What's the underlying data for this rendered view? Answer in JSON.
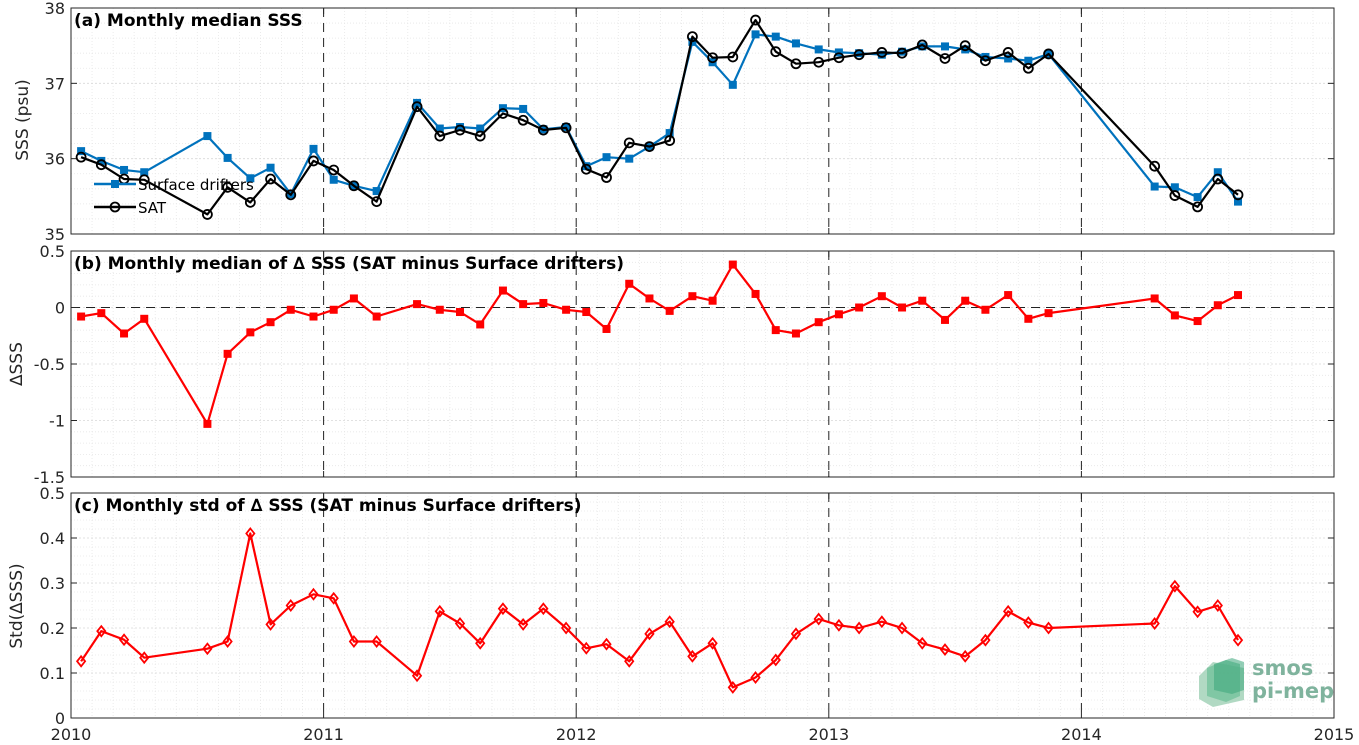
{
  "chart_data": [
    {
      "type": "line",
      "title": "(a) Monthly median SSS",
      "ylabel": "SSS (psu)",
      "xlim": [
        2010,
        2015
      ],
      "ylim": [
        35,
        38
      ],
      "yticks": [
        35,
        36,
        37,
        38
      ],
      "xticks": [
        2010,
        2011,
        2012,
        2013,
        2014,
        2015
      ],
      "grid": true,
      "legend": "lower-left",
      "series": [
        {
          "name": "Surface drifters",
          "color": "#0072bd",
          "marker": "square",
          "x": [
            2010.04,
            2010.12,
            2010.21,
            2010.29,
            2010.54,
            2010.62,
            2010.71,
            2010.79,
            2010.87,
            2010.96,
            2011.04,
            2011.12,
            2011.21,
            2011.37,
            2011.46,
            2011.54,
            2011.62,
            2011.71,
            2011.79,
            2011.87,
            2011.96,
            2012.04,
            2012.12,
            2012.21,
            2012.29,
            2012.37,
            2012.46,
            2012.54,
            2012.62,
            2012.71,
            2012.79,
            2012.87,
            2012.96,
            2013.04,
            2013.12,
            2013.21,
            2013.29,
            2013.37,
            2013.46,
            2013.54,
            2013.62,
            2013.71,
            2013.79,
            2013.87,
            2014.29,
            2014.37,
            2014.46,
            2014.54,
            2014.62
          ],
          "y": [
            36.1,
            35.97,
            35.85,
            35.82,
            36.3,
            36.01,
            35.74,
            35.88,
            35.53,
            36.13,
            35.72,
            35.64,
            35.57,
            36.74,
            36.4,
            36.42,
            36.4,
            36.67,
            36.66,
            36.39,
            36.42,
            35.9,
            36.02,
            36.0,
            36.16,
            36.34,
            37.55,
            37.28,
            36.98,
            37.65,
            37.62,
            37.53,
            37.45,
            37.41,
            37.4,
            37.38,
            37.42,
            37.49,
            37.49,
            37.45,
            37.35,
            37.33,
            37.3,
            37.39,
            35.63,
            35.62,
            35.49,
            35.82,
            35.43
          ]
        },
        {
          "name": "SAT",
          "color": "#000000",
          "marker": "circle",
          "x": [
            2010.04,
            2010.12,
            2010.21,
            2010.29,
            2010.54,
            2010.62,
            2010.71,
            2010.79,
            2010.87,
            2010.96,
            2011.04,
            2011.12,
            2011.21,
            2011.37,
            2011.46,
            2011.54,
            2011.62,
            2011.71,
            2011.79,
            2011.87,
            2011.96,
            2012.04,
            2012.12,
            2012.21,
            2012.29,
            2012.37,
            2012.46,
            2012.54,
            2012.62,
            2012.71,
            2012.79,
            2012.87,
            2012.96,
            2013.04,
            2013.12,
            2013.21,
            2013.29,
            2013.37,
            2013.46,
            2013.54,
            2013.62,
            2013.71,
            2013.79,
            2013.87,
            2014.29,
            2014.37,
            2014.46,
            2014.54,
            2014.62
          ],
          "y": [
            36.02,
            35.92,
            35.73,
            35.72,
            35.26,
            35.62,
            35.42,
            35.73,
            35.52,
            35.97,
            35.85,
            35.64,
            35.43,
            36.69,
            36.3,
            36.38,
            36.3,
            36.6,
            36.51,
            36.38,
            36.41,
            35.86,
            35.75,
            36.21,
            36.16,
            36.24,
            37.62,
            37.34,
            37.35,
            37.84,
            37.42,
            37.26,
            37.28,
            37.34,
            37.38,
            37.41,
            37.4,
            37.51,
            37.33,
            37.5,
            37.3,
            37.41,
            37.2,
            37.39,
            35.9,
            35.51,
            35.36,
            35.73,
            35.52
          ]
        }
      ]
    },
    {
      "type": "line",
      "title": "(b) Monthly median of ∆ SSS (SAT minus Surface drifters)",
      "ylabel": "∆SSS",
      "xlim": [
        2010,
        2015
      ],
      "ylim": [
        -1.5,
        0.5
      ],
      "yticks": [
        -1.5,
        -1,
        -0.5,
        0,
        0.5
      ],
      "xticks": [
        2010,
        2011,
        2012,
        2013,
        2014,
        2015
      ],
      "grid": true,
      "reference_line": 0,
      "series": [
        {
          "name": "",
          "color": "#ff0000",
          "marker": "square",
          "x": [
            2010.04,
            2010.12,
            2010.21,
            2010.29,
            2010.54,
            2010.62,
            2010.71,
            2010.79,
            2010.87,
            2010.96,
            2011.04,
            2011.12,
            2011.21,
            2011.37,
            2011.46,
            2011.54,
            2011.62,
            2011.71,
            2011.79,
            2011.87,
            2011.96,
            2012.04,
            2012.12,
            2012.21,
            2012.29,
            2012.37,
            2012.46,
            2012.54,
            2012.62,
            2012.71,
            2012.79,
            2012.87,
            2012.96,
            2013.04,
            2013.12,
            2013.21,
            2013.29,
            2013.37,
            2013.46,
            2013.54,
            2013.62,
            2013.71,
            2013.79,
            2013.87,
            2014.29,
            2014.37,
            2014.46,
            2014.54,
            2014.62
          ],
          "y": [
            -0.08,
            -0.05,
            -0.23,
            -0.1,
            -1.03,
            -0.41,
            -0.22,
            -0.13,
            -0.02,
            -0.08,
            -0.02,
            0.08,
            -0.08,
            0.03,
            -0.02,
            -0.04,
            -0.15,
            0.15,
            0.03,
            0.04,
            -0.02,
            -0.04,
            -0.19,
            0.21,
            0.08,
            -0.03,
            0.1,
            0.06,
            0.38,
            0.12,
            -0.2,
            -0.23,
            -0.13,
            -0.06,
            0.0,
            0.1,
            0.0,
            0.06,
            -0.11,
            0.06,
            -0.02,
            0.11,
            -0.1,
            -0.05,
            0.08,
            -0.07,
            -0.12,
            0.02,
            0.11
          ]
        }
      ]
    },
    {
      "type": "line",
      "title": "(c) Monthly std of ∆ SSS (SAT minus Surface drifters)",
      "ylabel": "Std(∆SSS)",
      "xlim": [
        2010,
        2015
      ],
      "ylim": [
        0,
        0.5
      ],
      "yticks": [
        0,
        0.1,
        0.2,
        0.3,
        0.4,
        0.5
      ],
      "xticks": [
        2010,
        2011,
        2012,
        2013,
        2014,
        2015
      ],
      "grid": true,
      "series": [
        {
          "name": "",
          "color": "#ff0000",
          "marker": "diamond",
          "x": [
            2010.04,
            2010.12,
            2010.21,
            2010.29,
            2010.54,
            2010.62,
            2010.71,
            2010.79,
            2010.87,
            2010.96,
            2011.04,
            2011.12,
            2011.21,
            2011.37,
            2011.46,
            2011.54,
            2011.62,
            2011.71,
            2011.79,
            2011.87,
            2011.96,
            2012.04,
            2012.12,
            2012.21,
            2012.29,
            2012.37,
            2012.46,
            2012.54,
            2012.62,
            2012.71,
            2012.79,
            2012.87,
            2012.96,
            2013.04,
            2013.12,
            2013.21,
            2013.29,
            2013.37,
            2013.46,
            2013.54,
            2013.62,
            2013.71,
            2013.79,
            2013.87,
            2014.29,
            2014.37,
            2014.46,
            2014.54,
            2014.62
          ],
          "y": [
            0.126,
            0.193,
            0.174,
            0.134,
            0.154,
            0.17,
            0.41,
            0.208,
            0.25,
            0.275,
            0.266,
            0.17,
            0.17,
            0.094,
            0.237,
            0.21,
            0.166,
            0.243,
            0.208,
            0.243,
            0.2,
            0.155,
            0.164,
            0.126,
            0.187,
            0.214,
            0.137,
            0.166,
            0.068,
            0.09,
            0.129,
            0.187,
            0.22,
            0.206,
            0.2,
            0.214,
            0.2,
            0.166,
            0.152,
            0.137,
            0.173,
            0.237,
            0.212,
            0.2,
            0.21,
            0.293,
            0.236,
            0.25,
            0.173
          ]
        }
      ]
    }
  ],
  "logo": {
    "line1": "smos",
    "line2": "pi-mep"
  }
}
